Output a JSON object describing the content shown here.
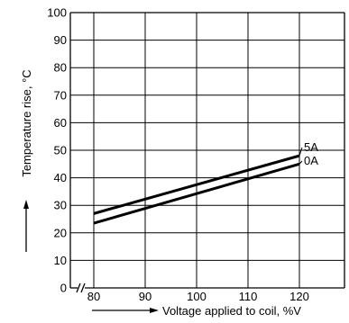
{
  "chart_data": {
    "type": "line",
    "x_axis_break": true,
    "xlabel": "Voltage applied to coil, %V",
    "ylabel": "Temperature rise, °C",
    "x_ticks": [
      80,
      90,
      100,
      110,
      120
    ],
    "y_ticks": [
      0,
      10,
      20,
      30,
      40,
      50,
      60,
      70,
      80,
      90,
      100
    ],
    "xlim": [
      80,
      130
    ],
    "ylim": [
      0,
      100
    ],
    "grid": true,
    "series": [
      {
        "name": "5A",
        "x": [
          80,
          120
        ],
        "y": [
          27,
          48
        ]
      },
      {
        "name": "0A",
        "x": [
          80,
          120
        ],
        "y": [
          23.5,
          45
        ]
      }
    ]
  }
}
